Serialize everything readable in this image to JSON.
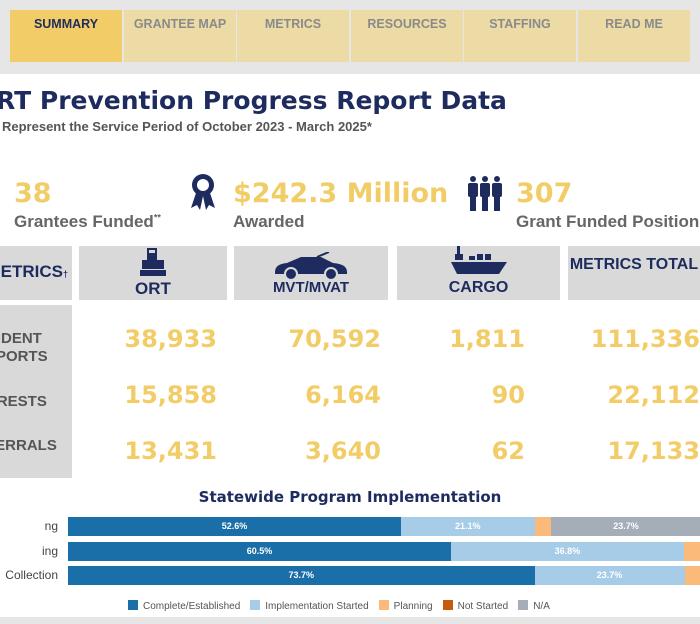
{
  "tabs": [
    "SUMMARY",
    "GRANTEE MAP",
    "METRICS",
    "RESOURCES",
    "STAFFING",
    "READ ME"
  ],
  "title": "RT Prevention Progress Report Data",
  "subtitle": "Represent the Service Period of October 2023 - March 2025*",
  "kpis": [
    {
      "value": "38",
      "label": "Grantees Funded",
      "mark": "**",
      "icon": "none"
    },
    {
      "value": "$242.3 Million",
      "label": "Awarded",
      "icon": "award-ribbon-icon"
    },
    {
      "value": "307",
      "label": "Grant Funded Positions",
      "icon": "people-icon"
    }
  ],
  "table": {
    "corner": "ETRICS",
    "corner_mark": "†",
    "columns": [
      "ORT",
      "MVT/MVAT",
      "CARGO",
      "METRICS TOTAL"
    ],
    "rows": [
      {
        "label": "CIDENT\nEPORTS",
        "values": [
          "38,933",
          "70,592",
          "1,811",
          "111,336"
        ]
      },
      {
        "label": "RRESTS",
        "values": [
          "15,858",
          "6,164",
          "90",
          "22,112"
        ]
      },
      {
        "label": "FERRALS",
        "values": [
          "13,431",
          "3,640",
          "62",
          "17,133"
        ]
      }
    ]
  },
  "chart_data": {
    "type": "bar",
    "orientation": "horizontal-stacked",
    "title": "Statewide Program Implementation",
    "categories": [
      "ng",
      "ing",
      "Collection"
    ],
    "series": [
      {
        "name": "Complete/Established",
        "color": "#1a6fa8",
        "values": [
          52.6,
          60.5,
          73.7
        ]
      },
      {
        "name": "Implementation Started",
        "color": "#a6cce8",
        "values": [
          21.1,
          36.8,
          23.7
        ]
      },
      {
        "name": "Planning",
        "color": "#fbb97a",
        "values": [
          2.6,
          2.6,
          2.6
        ]
      },
      {
        "name": "Not Started",
        "color": "#c85a10",
        "values": [
          0,
          0,
          0
        ]
      },
      {
        "name": "N/A",
        "color": "#a5adb8",
        "values": [
          23.7,
          0,
          0
        ]
      }
    ],
    "xlim": [
      0,
      100
    ]
  }
}
